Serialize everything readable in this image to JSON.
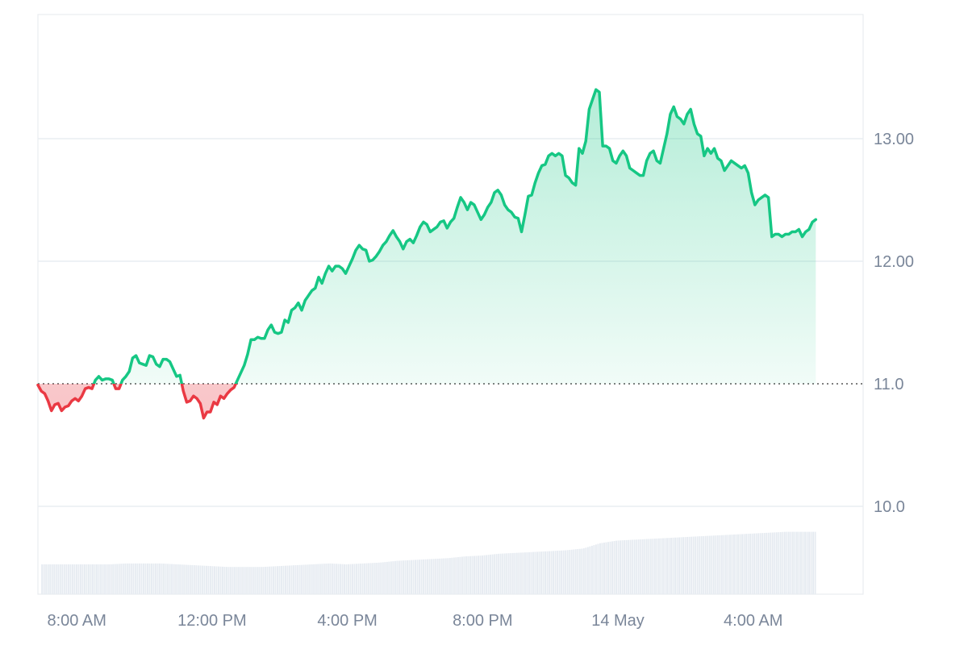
{
  "chart_data": {
    "type": "area",
    "baseline": 11.0,
    "y_ticks": [
      {
        "value": 13.0,
        "label": "13.00"
      },
      {
        "value": 12.0,
        "label": "12.00"
      },
      {
        "value": 11.0,
        "label": "11.0"
      },
      {
        "value": 10.0,
        "label": "10.0"
      }
    ],
    "x_ticks": [
      {
        "hours": 0,
        "label": "8:00 AM"
      },
      {
        "hours": 4,
        "label": "12:00 PM"
      },
      {
        "hours": 8,
        "label": "4:00 PM"
      },
      {
        "hours": 12,
        "label": "8:00 PM"
      },
      {
        "hours": 16,
        "label": "14 May"
      },
      {
        "hours": 20,
        "label": "4:00 AM"
      }
    ],
    "x_range_hours": [
      -0.1,
      24.3
    ],
    "y_range": [
      10.0,
      14.0
    ],
    "colors": {
      "up_line": "#16c784",
      "down_line": "#ea3943",
      "up_fill": "#16c784",
      "down_fill": "#ea3943",
      "volume": "#e6ebf1",
      "grid": "#e9edf2",
      "axis_text": "#7a8699",
      "baseline": "#555555"
    },
    "series": [
      {
        "points": [
          [
            -0.1,
            10.99
          ],
          [
            0.0,
            10.94
          ],
          [
            0.1,
            10.92
          ],
          [
            0.2,
            10.86
          ],
          [
            0.3,
            10.78
          ],
          [
            0.4,
            10.83
          ],
          [
            0.5,
            10.84
          ],
          [
            0.6,
            10.78
          ],
          [
            0.7,
            10.81
          ],
          [
            0.8,
            10.82
          ],
          [
            0.9,
            10.86
          ],
          [
            1.0,
            10.88
          ],
          [
            1.1,
            10.86
          ],
          [
            1.2,
            10.9
          ],
          [
            1.3,
            10.96
          ],
          [
            1.4,
            10.97
          ],
          [
            1.5,
            10.96
          ],
          [
            1.6,
            11.03
          ],
          [
            1.7,
            11.06
          ],
          [
            1.8,
            11.03
          ],
          [
            1.9,
            11.04
          ],
          [
            2.0,
            11.04
          ],
          [
            2.1,
            11.03
          ],
          [
            2.2,
            10.96
          ],
          [
            2.3,
            10.96
          ],
          [
            2.4,
            11.03
          ],
          [
            2.5,
            11.06
          ],
          [
            2.6,
            11.1
          ],
          [
            2.7,
            11.21
          ],
          [
            2.8,
            11.23
          ],
          [
            2.9,
            11.17
          ],
          [
            3.0,
            11.16
          ],
          [
            3.1,
            11.15
          ],
          [
            3.2,
            11.23
          ],
          [
            3.3,
            11.22
          ],
          [
            3.4,
            11.16
          ],
          [
            3.5,
            11.14
          ],
          [
            3.6,
            11.2
          ],
          [
            3.7,
            11.2
          ],
          [
            3.8,
            11.18
          ],
          [
            3.9,
            11.12
          ],
          [
            4.0,
            11.06
          ],
          [
            4.1,
            11.07
          ],
          [
            4.2,
            10.94
          ],
          [
            4.3,
            10.85
          ],
          [
            4.4,
            10.86
          ],
          [
            4.5,
            10.9
          ],
          [
            4.6,
            10.88
          ],
          [
            4.7,
            10.84
          ],
          [
            4.8,
            10.72
          ],
          [
            4.9,
            10.77
          ],
          [
            5.0,
            10.77
          ],
          [
            5.1,
            10.85
          ],
          [
            5.2,
            10.83
          ],
          [
            5.3,
            10.9
          ],
          [
            5.4,
            10.88
          ],
          [
            5.5,
            10.92
          ],
          [
            5.6,
            10.95
          ],
          [
            5.7,
            10.97
          ],
          [
            5.8,
            11.03
          ],
          [
            5.9,
            11.09
          ],
          [
            6.0,
            11.15
          ],
          [
            6.1,
            11.24
          ],
          [
            6.2,
            11.36
          ],
          [
            6.3,
            11.36
          ],
          [
            6.4,
            11.38
          ],
          [
            6.5,
            11.37
          ],
          [
            6.6,
            11.37
          ],
          [
            6.7,
            11.44
          ],
          [
            6.8,
            11.48
          ],
          [
            6.9,
            11.42
          ],
          [
            7.0,
            11.41
          ],
          [
            7.1,
            11.42
          ],
          [
            7.2,
            11.52
          ],
          [
            7.3,
            11.5
          ],
          [
            7.4,
            11.6
          ],
          [
            7.5,
            11.62
          ],
          [
            7.6,
            11.66
          ],
          [
            7.7,
            11.6
          ],
          [
            7.8,
            11.68
          ],
          [
            7.9,
            11.72
          ],
          [
            8.0,
            11.76
          ],
          [
            8.1,
            11.78
          ],
          [
            8.2,
            11.87
          ],
          [
            8.3,
            11.82
          ],
          [
            8.4,
            11.9
          ],
          [
            8.5,
            11.96
          ],
          [
            8.6,
            11.92
          ],
          [
            8.7,
            11.96
          ],
          [
            8.8,
            11.96
          ],
          [
            8.9,
            11.94
          ],
          [
            9.0,
            11.9
          ],
          [
            9.1,
            11.96
          ],
          [
            9.2,
            12.02
          ],
          [
            9.3,
            12.09
          ],
          [
            9.4,
            12.13
          ],
          [
            9.5,
            12.1
          ],
          [
            9.6,
            12.09
          ],
          [
            9.7,
            12.0
          ],
          [
            9.8,
            12.01
          ],
          [
            9.9,
            12.04
          ],
          [
            10.0,
            12.08
          ],
          [
            10.1,
            12.13
          ],
          [
            10.2,
            12.16
          ],
          [
            10.3,
            12.21
          ],
          [
            10.4,
            12.25
          ],
          [
            10.5,
            12.2
          ],
          [
            10.6,
            12.16
          ],
          [
            10.7,
            12.1
          ],
          [
            10.8,
            12.16
          ],
          [
            10.9,
            12.18
          ],
          [
            11.0,
            12.15
          ],
          [
            11.1,
            12.21
          ],
          [
            11.2,
            12.28
          ],
          [
            11.3,
            12.32
          ],
          [
            11.4,
            12.3
          ],
          [
            11.5,
            12.24
          ],
          [
            11.6,
            12.26
          ],
          [
            11.7,
            12.28
          ],
          [
            11.8,
            12.32
          ],
          [
            11.9,
            12.33
          ],
          [
            12.0,
            12.27
          ],
          [
            12.1,
            12.32
          ],
          [
            12.2,
            12.35
          ],
          [
            12.3,
            12.44
          ],
          [
            12.4,
            12.52
          ],
          [
            12.5,
            12.48
          ],
          [
            12.6,
            12.42
          ],
          [
            12.7,
            12.48
          ],
          [
            12.8,
            12.46
          ],
          [
            12.9,
            12.4
          ],
          [
            13.0,
            12.34
          ],
          [
            13.1,
            12.38
          ],
          [
            13.2,
            12.44
          ],
          [
            13.3,
            12.48
          ],
          [
            13.4,
            12.56
          ],
          [
            13.5,
            12.58
          ],
          [
            13.6,
            12.54
          ],
          [
            13.7,
            12.46
          ],
          [
            13.8,
            12.42
          ],
          [
            13.9,
            12.4
          ],
          [
            14.0,
            12.36
          ],
          [
            14.1,
            12.35
          ],
          [
            14.2,
            12.24
          ],
          [
            14.3,
            12.38
          ],
          [
            14.4,
            12.53
          ],
          [
            14.5,
            12.54
          ],
          [
            14.6,
            12.64
          ],
          [
            14.7,
            12.72
          ],
          [
            14.8,
            12.78
          ],
          [
            14.9,
            12.79
          ],
          [
            15.0,
            12.86
          ],
          [
            15.1,
            12.88
          ],
          [
            15.2,
            12.86
          ],
          [
            15.3,
            12.88
          ],
          [
            15.4,
            12.86
          ],
          [
            15.5,
            12.7
          ],
          [
            15.6,
            12.68
          ],
          [
            15.7,
            12.64
          ],
          [
            15.8,
            12.62
          ],
          [
            15.9,
            12.92
          ],
          [
            16.0,
            12.88
          ],
          [
            16.1,
            12.98
          ],
          [
            16.2,
            13.24
          ],
          [
            16.3,
            13.32
          ],
          [
            16.4,
            13.4
          ],
          [
            16.5,
            13.38
          ],
          [
            16.6,
            12.94
          ],
          [
            16.7,
            12.94
          ],
          [
            16.8,
            12.92
          ],
          [
            16.9,
            12.82
          ],
          [
            17.0,
            12.8
          ],
          [
            17.1,
            12.86
          ],
          [
            17.2,
            12.9
          ],
          [
            17.3,
            12.86
          ],
          [
            17.4,
            12.76
          ],
          [
            17.5,
            12.74
          ],
          [
            17.6,
            12.72
          ],
          [
            17.7,
            12.7
          ],
          [
            17.8,
            12.7
          ],
          [
            17.9,
            12.82
          ],
          [
            18.0,
            12.88
          ],
          [
            18.1,
            12.9
          ],
          [
            18.2,
            12.82
          ],
          [
            18.3,
            12.8
          ],
          [
            18.4,
            12.92
          ],
          [
            18.5,
            13.04
          ],
          [
            18.6,
            13.2
          ],
          [
            18.7,
            13.26
          ],
          [
            18.8,
            13.18
          ],
          [
            18.9,
            13.16
          ],
          [
            19.0,
            13.12
          ],
          [
            19.1,
            13.2
          ],
          [
            19.2,
            13.24
          ],
          [
            19.3,
            13.12
          ],
          [
            19.4,
            13.04
          ],
          [
            19.5,
            13.02
          ],
          [
            19.6,
            12.86
          ],
          [
            19.7,
            12.92
          ],
          [
            19.8,
            12.88
          ],
          [
            19.9,
            12.92
          ],
          [
            20.0,
            12.84
          ],
          [
            20.1,
            12.82
          ],
          [
            20.2,
            12.74
          ],
          [
            20.3,
            12.78
          ],
          [
            20.4,
            12.82
          ],
          [
            20.5,
            12.8
          ],
          [
            20.6,
            12.78
          ],
          [
            20.7,
            12.76
          ],
          [
            20.8,
            12.78
          ],
          [
            20.9,
            12.72
          ],
          [
            21.0,
            12.56
          ],
          [
            21.1,
            12.46
          ],
          [
            21.2,
            12.5
          ],
          [
            21.3,
            12.52
          ],
          [
            21.4,
            12.54
          ],
          [
            21.5,
            12.52
          ],
          [
            21.6,
            12.2
          ],
          [
            21.7,
            12.22
          ],
          [
            21.8,
            12.22
          ],
          [
            21.9,
            12.2
          ],
          [
            22.0,
            12.22
          ],
          [
            22.1,
            12.22
          ],
          [
            22.2,
            12.24
          ],
          [
            22.3,
            12.24
          ],
          [
            22.4,
            12.26
          ],
          [
            22.5,
            12.2
          ],
          [
            22.6,
            12.24
          ],
          [
            22.7,
            12.26
          ],
          [
            22.8,
            12.32
          ],
          [
            22.9,
            12.34
          ]
        ]
      }
    ],
    "volume": {
      "y_range": [
        0,
        10
      ],
      "points": [
        [
          0.0,
          3.4
        ],
        [
          0.5,
          3.4
        ],
        [
          1.0,
          3.4
        ],
        [
          1.5,
          3.4
        ],
        [
          2.0,
          3.4
        ],
        [
          2.5,
          3.5
        ],
        [
          3.0,
          3.5
        ],
        [
          3.5,
          3.5
        ],
        [
          4.0,
          3.4
        ],
        [
          4.5,
          3.3
        ],
        [
          5.0,
          3.2
        ],
        [
          5.5,
          3.1
        ],
        [
          6.0,
          3.1
        ],
        [
          6.5,
          3.1
        ],
        [
          7.0,
          3.2
        ],
        [
          7.5,
          3.3
        ],
        [
          8.0,
          3.4
        ],
        [
          8.5,
          3.5
        ],
        [
          9.0,
          3.4
        ],
        [
          9.5,
          3.5
        ],
        [
          10.0,
          3.6
        ],
        [
          10.5,
          3.8
        ],
        [
          11.0,
          3.9
        ],
        [
          11.5,
          4.0
        ],
        [
          12.0,
          4.1
        ],
        [
          12.5,
          4.3
        ],
        [
          13.0,
          4.4
        ],
        [
          13.5,
          4.6
        ],
        [
          14.0,
          4.7
        ],
        [
          14.5,
          4.8
        ],
        [
          15.0,
          4.9
        ],
        [
          15.5,
          5.0
        ],
        [
          16.0,
          5.2
        ],
        [
          16.5,
          5.8
        ],
        [
          17.0,
          6.1
        ],
        [
          17.5,
          6.2
        ],
        [
          18.0,
          6.3
        ],
        [
          18.5,
          6.4
        ],
        [
          19.0,
          6.5
        ],
        [
          19.5,
          6.6
        ],
        [
          20.0,
          6.7
        ],
        [
          20.5,
          6.8
        ],
        [
          21.0,
          6.9
        ],
        [
          21.5,
          7.0
        ],
        [
          22.0,
          7.1
        ],
        [
          22.5,
          7.1
        ],
        [
          22.9,
          7.1
        ]
      ]
    }
  }
}
